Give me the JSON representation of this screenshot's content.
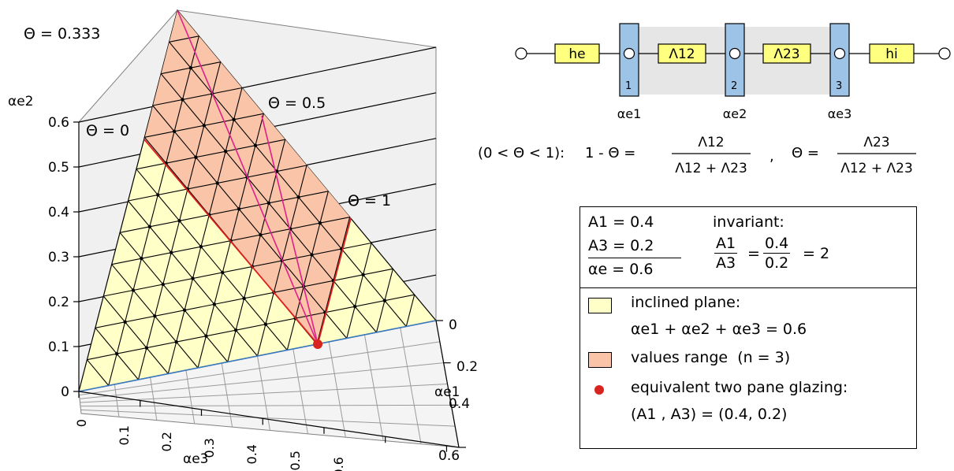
{
  "plot": {
    "z_axis_label": "αe2",
    "z_ticks": [
      "0",
      "0.1",
      "0.2",
      "0.3",
      "0.4",
      "0.5",
      "0.6"
    ],
    "x_axis_label": "αe3",
    "x_ticks": [
      "0",
      "0.1",
      "0.2",
      "0.3",
      "0.4",
      "0.5",
      "0.6"
    ],
    "y_axis_label": "αe1",
    "y_ticks": [
      "0",
      "0.2",
      "0.4",
      "0.6"
    ],
    "annotations": {
      "theta_0333": "Θ = 0.333",
      "theta_0": "Θ = 0",
      "theta_05": "Θ = 0.5",
      "theta_1": "Θ = 1"
    },
    "colors": {
      "plane_fill": "#ffffc8",
      "range_fill": "#f9c4a8",
      "red_line": "#e0201e",
      "magenta_line": "#e0208c",
      "base_line": "#3a78c0",
      "point": "#d9231f"
    }
  },
  "circuit": {
    "he": "he",
    "hi": "hi",
    "lambda12": "Λ12",
    "lambda23": "Λ23",
    "node1": "1",
    "node2": "2",
    "node3": "3",
    "alpha_e1": "αe1",
    "alpha_e2": "αe2",
    "alpha_e3": "αe3",
    "colors": {
      "yellow": "#ffff80",
      "blue": "#9dc3e6",
      "gray": "#e6e6e6"
    }
  },
  "formula": {
    "range": "(0 < Θ < 1):",
    "lhs1": "1 - Θ =",
    "num1": "Λ12",
    "den1": "Λ12 + Λ23",
    "sep": ",",
    "lhs2": "Θ =",
    "num2": "Λ23",
    "den2": "Λ12 + Λ23"
  },
  "legend": {
    "a1": "A1 = 0.4",
    "a3": "A3 = 0.2",
    "ae": "αe = 0.6",
    "invariant": "invariant:",
    "inv_num": "A1",
    "inv_den": "A3",
    "eq1": "=",
    "val_num": "0.4",
    "val_den": "0.2",
    "eq2": "= 2",
    "plane_label": "inclined plane:",
    "plane_eq": "αe1 + αe2 + αe3 = 0.6",
    "range_label": "values range",
    "range_n": "(n = 3)",
    "point_label": "equivalent two pane glazing:",
    "point_eq": "(A1 , A3) = (0.4, 0.2)"
  }
}
